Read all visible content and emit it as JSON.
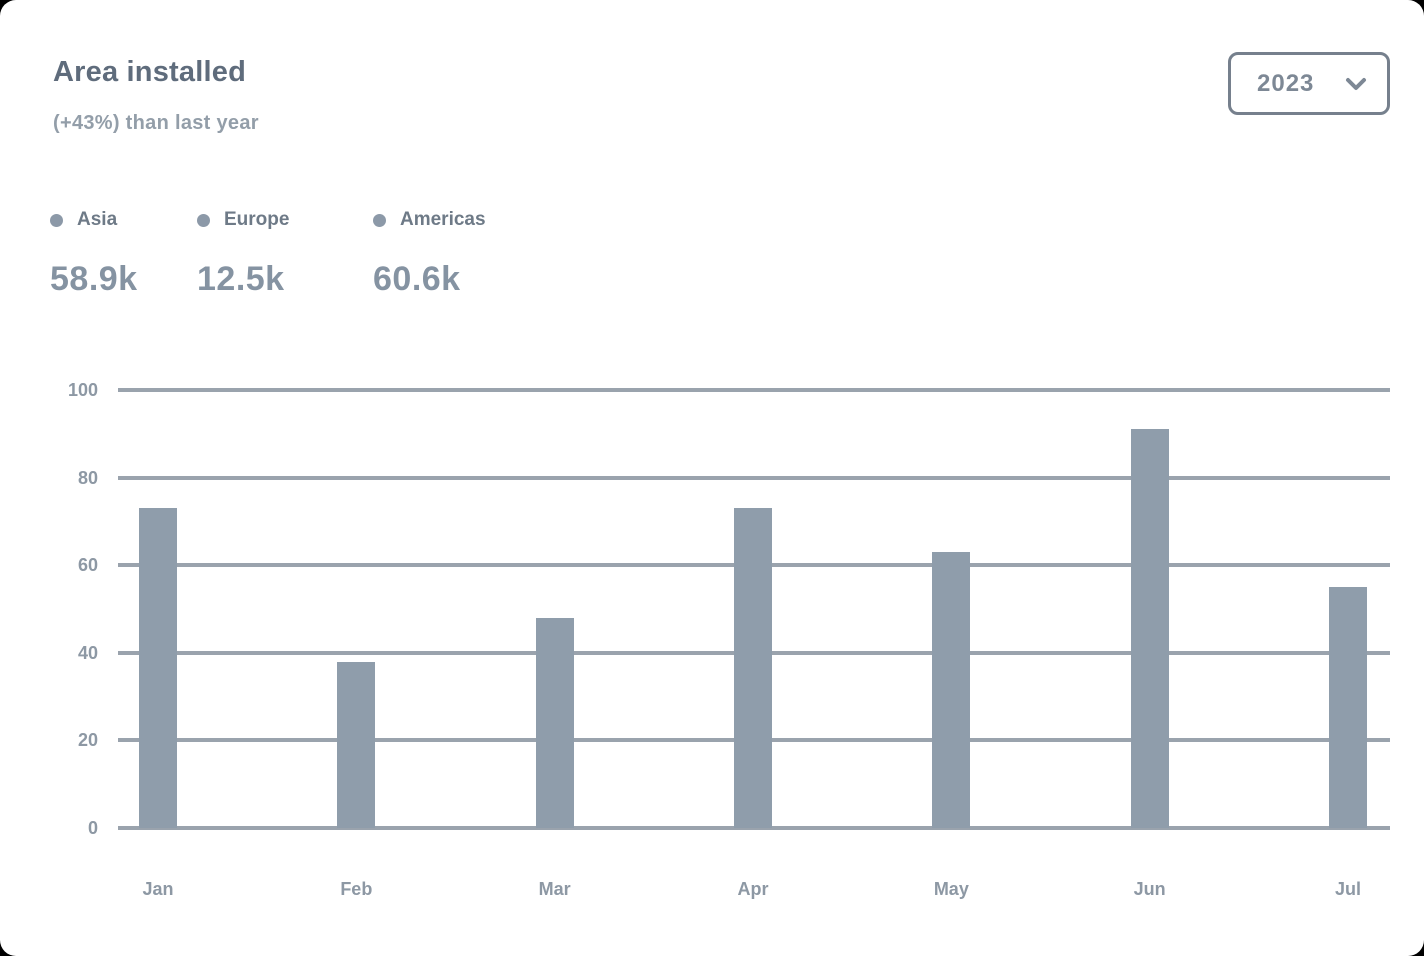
{
  "card": {
    "title": "Area installed",
    "subtitle": "(+43%) than last year",
    "year_selector": {
      "value": "2023"
    }
  },
  "legend": [
    {
      "label": "Asia",
      "value": "58.9k"
    },
    {
      "label": "Europe",
      "value": "12.5k"
    },
    {
      "label": "Americas",
      "value": "60.6k"
    }
  ],
  "chart_data": {
    "type": "bar",
    "title": "Area installed",
    "subtitle": "(+43%) than last year",
    "year": "2023",
    "categories": [
      "Jan",
      "Feb",
      "Mar",
      "Apr",
      "May",
      "Jun",
      "Jul"
    ],
    "values": [
      73,
      38,
      48,
      73,
      63,
      91,
      55
    ],
    "legend_entries": [
      "Asia",
      "Europe",
      "Americas"
    ],
    "legend_totals": [
      "58.9k",
      "12.5k",
      "60.6k"
    ],
    "xlabel": "",
    "ylabel": "",
    "ylim": [
      0,
      100
    ],
    "yticks": [
      0,
      20,
      40,
      60,
      80,
      100
    ],
    "grid": true,
    "legend_position": "top-left"
  },
  "colors": {
    "card_bg": "#ffffff",
    "bar": "#8f9dab",
    "grid": "#9aa3ad",
    "title_text": "#5f6c7c",
    "subtitle_text": "#939ea9",
    "legend_dot": "#8c99a8",
    "legend_label_text": "#6e7a87",
    "legend_value_text": "#8593a2",
    "axis_label_text": "#8d98a4",
    "button_border": "#76808d",
    "button_text": "#7d8895"
  }
}
